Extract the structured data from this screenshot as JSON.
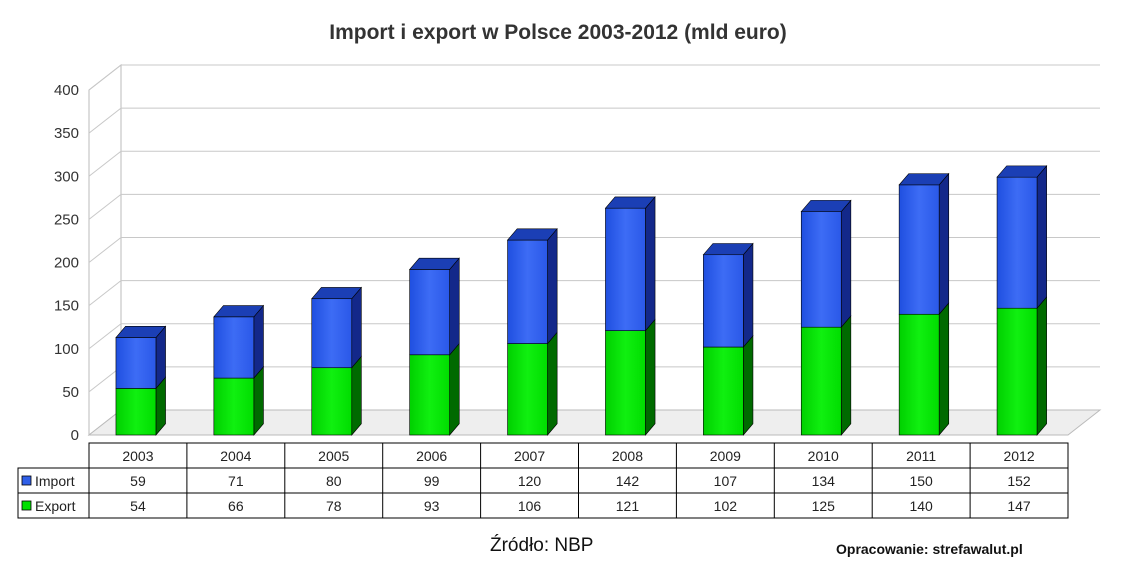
{
  "chart_data": {
    "type": "bar",
    "stacked": true,
    "title": "Import i export w Polsce 2003-2012 (mld euro)",
    "categories": [
      "2003",
      "2004",
      "2005",
      "2006",
      "2007",
      "2008",
      "2009",
      "2010",
      "2011",
      "2012"
    ],
    "series": [
      {
        "name": "Import",
        "color": "#2f5fe8",
        "values": [
          59,
          71,
          80,
          99,
          120,
          142,
          107,
          134,
          150,
          152
        ]
      },
      {
        "name": "Export",
        "color": "#00e000",
        "values": [
          54,
          66,
          78,
          93,
          106,
          121,
          102,
          125,
          140,
          147
        ]
      }
    ],
    "yticks": [
      "0",
      "50",
      "100",
      "150",
      "200",
      "250",
      "300",
      "350",
      "400"
    ],
    "ylim": [
      0,
      400
    ],
    "grid": true,
    "legend": "data-table-left"
  },
  "footer": {
    "source": "Źródło: NBP",
    "credit": "Opracowanie: strefawalut.pl"
  }
}
